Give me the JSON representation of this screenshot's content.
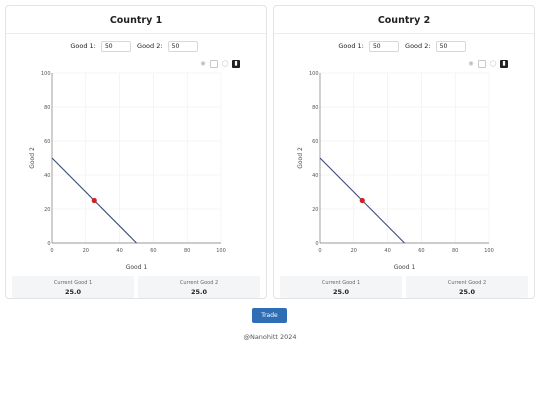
{
  "countries": [
    {
      "title": "Country 1",
      "good1_label": "Good 1:",
      "good1_value": "50",
      "good2_label": "Good 2:",
      "good2_value": "50",
      "current_good1_label": "Current Good 1",
      "current_good1_value": "25.0",
      "current_good2_label": "Current Good 2",
      "current_good2_value": "25.0"
    },
    {
      "title": "Country 2",
      "good1_label": "Good 1:",
      "good1_value": "50",
      "good2_label": "Good 2:",
      "good2_value": "50",
      "current_good1_label": "Current Good 1",
      "current_good1_value": "25.0",
      "current_good2_label": "Current Good 2",
      "current_good2_value": "25.0"
    }
  ],
  "toolbar_icons": [
    "camera-icon",
    "box-select-icon",
    "lasso-icon",
    "bar-chart-icon"
  ],
  "chart_data": [
    {
      "type": "line",
      "xlabel": "Good 1",
      "ylabel": "Good 2",
      "xlim": [
        0,
        100
      ],
      "ylim": [
        0,
        100
      ],
      "xticks": [
        "0",
        "20",
        "40",
        "60",
        "80",
        "100"
      ],
      "yticks": [
        "0",
        "20",
        "40",
        "60",
        "80",
        "100"
      ],
      "grid": true,
      "series": [
        {
          "x": [
            0,
            50
          ],
          "y": [
            50,
            0
          ],
          "color": "#3b4a7a"
        }
      ],
      "point": {
        "x": 25,
        "y": 25,
        "color": "#d62020"
      }
    },
    {
      "type": "line",
      "xlabel": "Good 1",
      "ylabel": "Good 2",
      "xlim": [
        0,
        100
      ],
      "ylim": [
        0,
        100
      ],
      "xticks": [
        "0",
        "20",
        "40",
        "60",
        "80",
        "100"
      ],
      "yticks": [
        "0",
        "20",
        "40",
        "60",
        "80",
        "100"
      ],
      "grid": true,
      "series": [
        {
          "x": [
            0,
            50
          ],
          "y": [
            50,
            0
          ],
          "color": "#3b4a7a"
        }
      ],
      "point": {
        "x": 25,
        "y": 25,
        "color": "#d62020"
      }
    }
  ],
  "trade_button_label": "Trade",
  "footer": "@Nanohitt 2024"
}
